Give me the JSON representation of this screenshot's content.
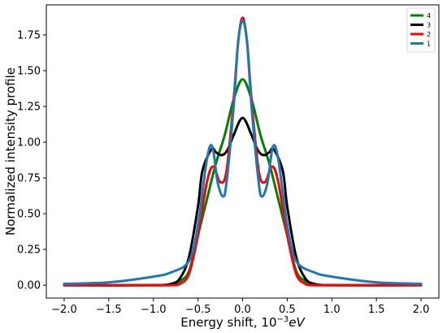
{
  "chart_data": {
    "type": "line",
    "xlabel": "Energy shift, 10",
    "xlabel_exp": "−3",
    "xlabel_unit": "eV",
    "ylabel": "Normalized intensity profile",
    "xlim": [
      -2.2,
      2.2
    ],
    "ylim": [
      -0.09,
      1.96
    ],
    "xticks": [
      -2.0,
      -1.5,
      -1.0,
      -0.5,
      0.0,
      0.5,
      1.0,
      1.5,
      2.0
    ],
    "xtick_labels": [
      "−2.0",
      "−1.5",
      "−1.0",
      "−0.5",
      "0.0",
      "0.5",
      "1.0",
      "1.5",
      "2.0"
    ],
    "yticks": [
      0.0,
      0.25,
      0.5,
      0.75,
      1.0,
      1.25,
      1.5,
      1.75
    ],
    "ytick_labels": [
      "0.00",
      "0.25",
      "0.50",
      "0.75",
      "1.00",
      "1.25",
      "1.50",
      "1.75"
    ],
    "grid": false,
    "legend_position": "top-right",
    "series": [
      {
        "name": "4",
        "color": "#008000",
        "x": [
          -2.0,
          -1.0,
          -0.8,
          -0.7,
          -0.6,
          -0.5,
          -0.4,
          -0.3,
          -0.2,
          -0.1,
          0.0,
          0.1,
          0.2,
          0.3,
          0.4,
          0.5,
          0.6,
          0.7,
          0.8,
          1.0,
          2.0
        ],
        "y": [
          0.0,
          0.0,
          0.01,
          0.03,
          0.1,
          0.35,
          0.6,
          0.85,
          1.05,
          1.3,
          1.44,
          1.3,
          1.05,
          0.85,
          0.6,
          0.35,
          0.1,
          0.03,
          0.01,
          0.0,
          0.0
        ]
      },
      {
        "name": "3",
        "color": "#000000",
        "x": [
          -2.0,
          -1.0,
          -0.8,
          -0.7,
          -0.6,
          -0.5,
          -0.45,
          -0.35,
          -0.3,
          -0.25,
          -0.2,
          -0.15,
          -0.1,
          0.0,
          0.1,
          0.15,
          0.2,
          0.25,
          0.3,
          0.35,
          0.45,
          0.5,
          0.6,
          0.7,
          0.8,
          1.0,
          2.0
        ],
        "y": [
          0.0,
          0.0,
          0.01,
          0.05,
          0.2,
          0.55,
          0.8,
          0.95,
          0.93,
          0.91,
          0.92,
          0.97,
          1.05,
          1.17,
          1.05,
          0.97,
          0.92,
          0.91,
          0.93,
          0.95,
          0.8,
          0.55,
          0.2,
          0.05,
          0.01,
          0.0,
          0.0
        ]
      },
      {
        "name": "2",
        "color": "#ff0000",
        "x": [
          -2.0,
          -1.0,
          -0.8,
          -0.7,
          -0.6,
          -0.5,
          -0.4,
          -0.33,
          -0.25,
          -0.18,
          -0.1,
          -0.05,
          0.0,
          0.05,
          0.1,
          0.18,
          0.25,
          0.33,
          0.4,
          0.5,
          0.6,
          0.7,
          0.8,
          1.0,
          2.0
        ],
        "y": [
          0.0,
          0.0,
          0.0,
          0.01,
          0.08,
          0.35,
          0.72,
          0.83,
          0.72,
          0.8,
          1.3,
          1.7,
          1.87,
          1.7,
          1.3,
          0.8,
          0.72,
          0.83,
          0.72,
          0.35,
          0.08,
          0.01,
          0.0,
          0.0,
          0.0
        ]
      },
      {
        "name": "1",
        "color": "#1f77b4",
        "x": [
          -2.0,
          -1.5,
          -1.0,
          -0.8,
          -0.6,
          -0.5,
          -0.4,
          -0.34,
          -0.28,
          -0.22,
          -0.18,
          -0.1,
          -0.05,
          0.0,
          0.05,
          0.1,
          0.18,
          0.22,
          0.28,
          0.34,
          0.4,
          0.5,
          0.6,
          0.8,
          1.0,
          1.5,
          2.0
        ],
        "y": [
          0.01,
          0.02,
          0.06,
          0.09,
          0.17,
          0.42,
          0.88,
          0.97,
          0.72,
          0.62,
          0.72,
          1.25,
          1.7,
          1.85,
          1.7,
          1.25,
          0.72,
          0.62,
          0.72,
          0.97,
          0.88,
          0.42,
          0.17,
          0.09,
          0.06,
          0.02,
          0.01
        ]
      }
    ]
  }
}
